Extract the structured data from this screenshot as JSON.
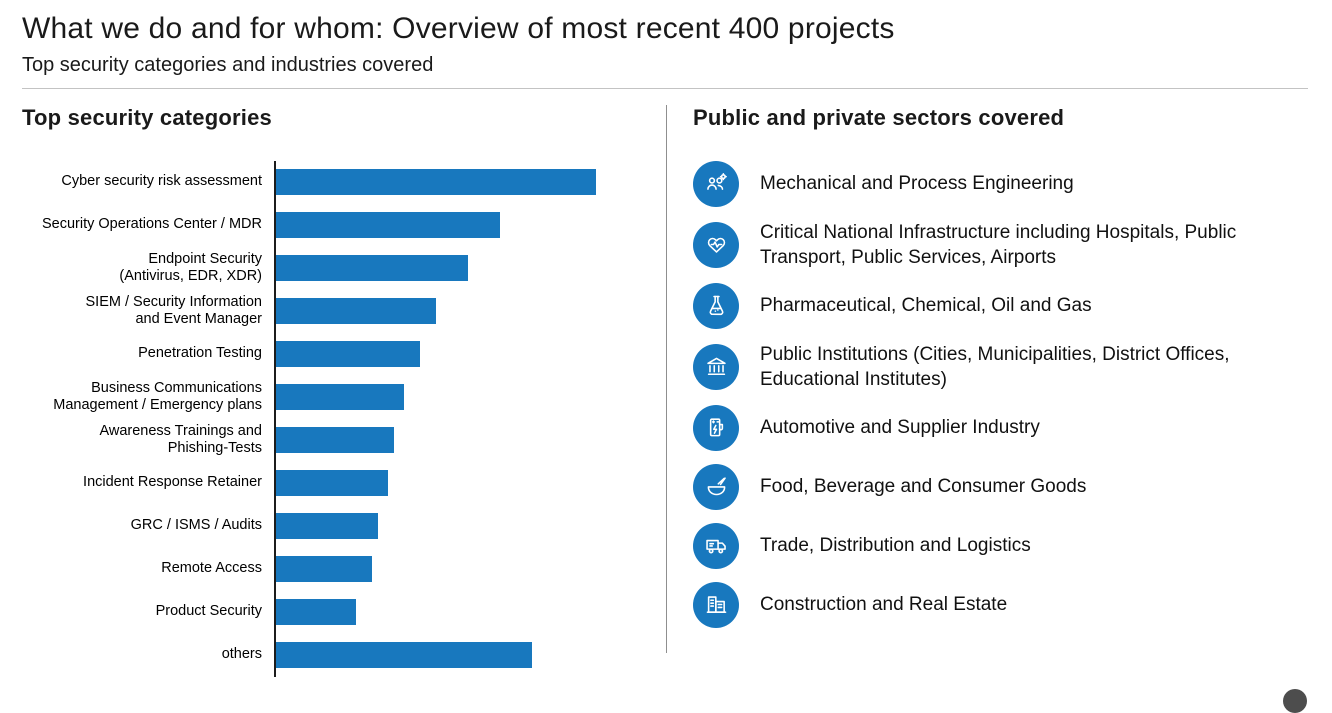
{
  "header": {
    "title": "What we do and for whom: Overview of most recent 400 projects",
    "subtitle": "Top security categories and industries covered"
  },
  "chart": {
    "heading": "Top security categories",
    "bar_color": "#1878BE",
    "axis_color": "#1c1c1c",
    "chart_data": {
      "type": "bar",
      "orientation": "horizontal",
      "title": "Top security categories",
      "xlabel": "",
      "ylabel": "",
      "xlim": [
        0,
        100
      ],
      "grid": false,
      "legend": false,
      "value_note": "No numeric axis shown in source; values are relative bar lengths estimated from pixels, longest bar = 100",
      "categories": [
        "Cyber security risk assessment",
        "Security Operations Center / MDR",
        "Endpoint Security\n(Antivirus, EDR, XDR)",
        "SIEM / Security Information\nand Event Manager",
        "Penetration Testing",
        "Business Communications\nManagement / Emergency plans",
        "Awareness Trainings and\nPhishing-Tests",
        "Incident Response Retainer",
        "GRC / ISMS / Audits",
        "Remote Access",
        "Product Security",
        "others"
      ],
      "values": [
        100,
        70,
        60,
        50,
        45,
        40,
        37,
        35,
        32,
        30,
        25,
        80
      ]
    }
  },
  "sectors": {
    "heading": "Public and private sectors covered",
    "icon_color": "#1878BE",
    "items": [
      {
        "icon": "people-gear-icon",
        "label": "Mechanical and Process Engineering"
      },
      {
        "icon": "heart-pulse-icon",
        "label": "Critical National Infrastructure including Hospitals, Public Transport, Public Services, Airports"
      },
      {
        "icon": "flask-icon",
        "label": "Pharmaceutical, Chemical, Oil and Gas"
      },
      {
        "icon": "bank-icon",
        "label": "Public Institutions (Cities, Municipalities, District Offices, Educational Institutes)"
      },
      {
        "icon": "ev-charger-icon",
        "label": "Automotive and Supplier Industry"
      },
      {
        "icon": "food-bowl-icon",
        "label": "Food, Beverage and Consumer Goods"
      },
      {
        "icon": "delivery-truck-icon",
        "label": "Trade, Distribution and Logistics"
      },
      {
        "icon": "buildings-icon",
        "label": "Construction and Real Estate"
      }
    ]
  }
}
